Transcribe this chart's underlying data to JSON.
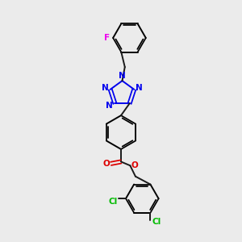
{
  "background_color": "#ebebeb",
  "bond_color": "#1a1a1a",
  "atom_colors": {
    "F": "#ee00ee",
    "N": "#0000ee",
    "O": "#dd0000",
    "Cl": "#00bb00",
    "C": "#1a1a1a"
  },
  "figsize": [
    3.0,
    3.0
  ],
  "dpi": 100
}
